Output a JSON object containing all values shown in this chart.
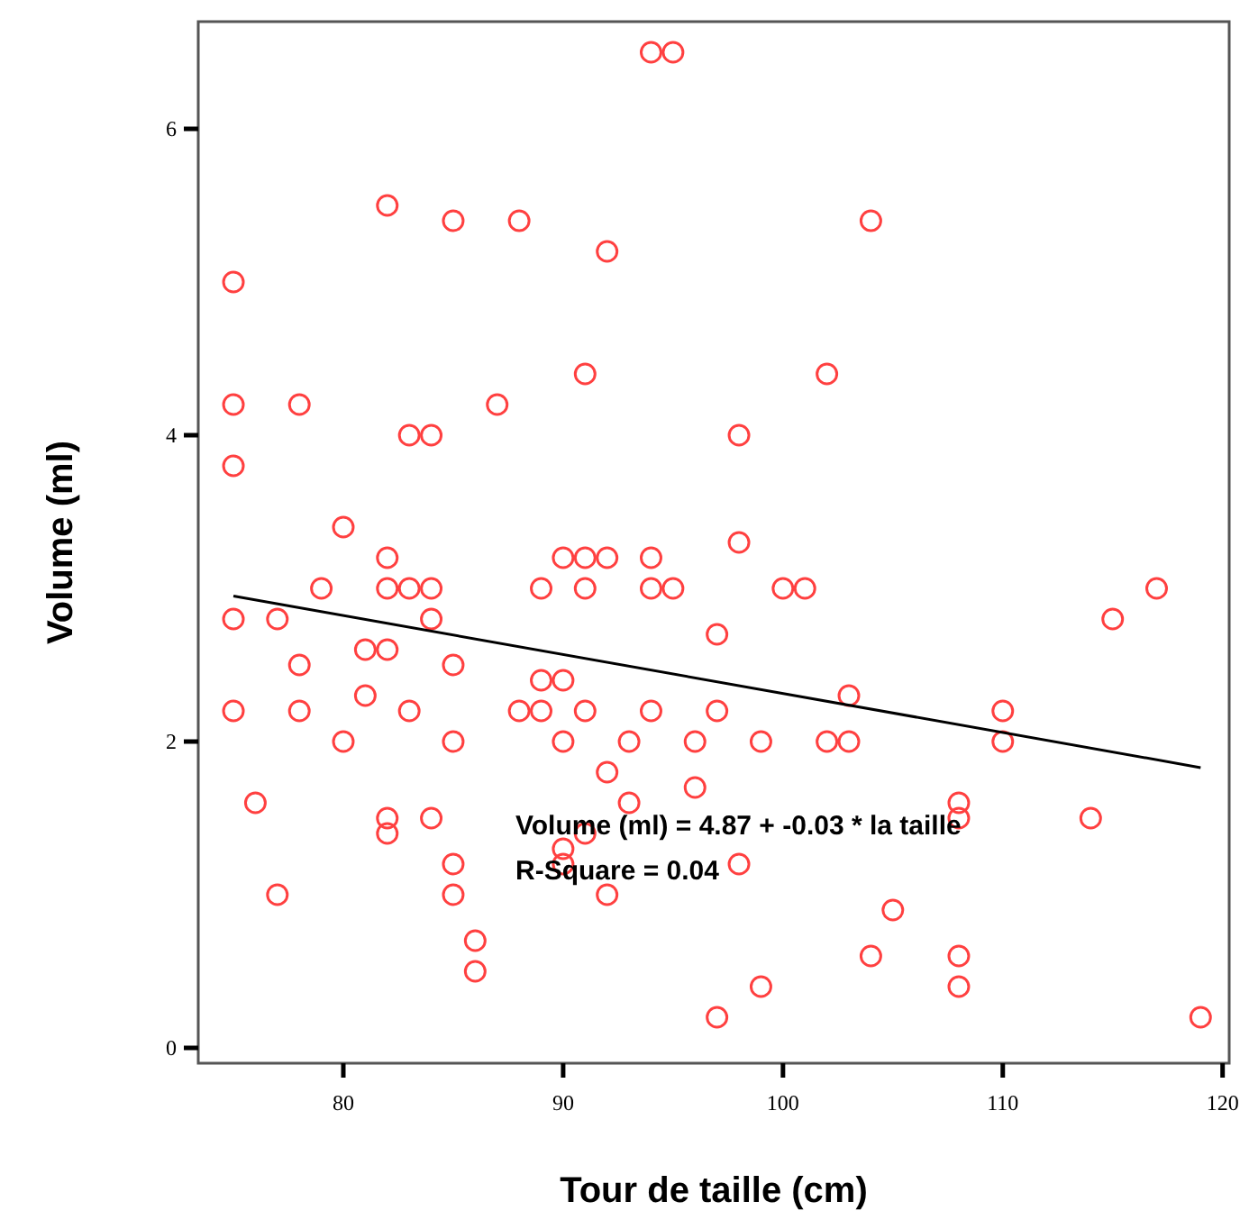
{
  "chart_data": {
    "type": "scatter",
    "xlabel": "Tour de taille (cm)",
    "ylabel": "Volume (ml)",
    "xlim": [
      73.4,
      120.3
    ],
    "ylim": [
      -0.1,
      6.7
    ],
    "xticks": [
      80,
      90,
      100,
      110,
      120
    ],
    "yticks": [
      0,
      2,
      4,
      6
    ],
    "grid": false,
    "marker": "circle",
    "series": [
      {
        "color": "#ff4040",
        "x": [
          75,
          75,
          75,
          75,
          75,
          76,
          77,
          77,
          78,
          78,
          78,
          79,
          80,
          80,
          81,
          81,
          82,
          82,
          82,
          82,
          82,
          82,
          83,
          83,
          83,
          84,
          84,
          84,
          84,
          85,
          85,
          85,
          85,
          85,
          86,
          86,
          87,
          88,
          88,
          89,
          89,
          89,
          90,
          90,
          90,
          90,
          90,
          91,
          91,
          91,
          91,
          91,
          92,
          92,
          92,
          92,
          93,
          93,
          94,
          94,
          94,
          94,
          95,
          95,
          96,
          96,
          97,
          97,
          97,
          98,
          98,
          98,
          99,
          99,
          100,
          101,
          102,
          102,
          103,
          103,
          104,
          104,
          105,
          108,
          108,
          108,
          108,
          110,
          110,
          114,
          115,
          117,
          119
        ],
        "values": [
          5.0,
          4.2,
          3.8,
          2.8,
          2.2,
          1.6,
          2.8,
          1.0,
          4.2,
          2.5,
          2.2,
          3.0,
          3.4,
          2.0,
          2.6,
          2.3,
          5.5,
          3.2,
          3.0,
          2.6,
          1.5,
          1.4,
          4.0,
          3.0,
          2.2,
          4.0,
          3.0,
          2.8,
          1.5,
          5.4,
          2.5,
          2.0,
          1.2,
          1.0,
          0.7,
          0.5,
          4.2,
          5.4,
          2.2,
          3.0,
          2.4,
          2.2,
          3.2,
          2.4,
          2.0,
          1.3,
          1.2,
          4.4,
          3.2,
          3.0,
          2.2,
          1.4,
          5.2,
          3.2,
          1.8,
          1.0,
          2.0,
          1.6,
          6.5,
          3.2,
          3.0,
          2.2,
          6.5,
          3.0,
          2.0,
          1.7,
          2.7,
          2.2,
          0.2,
          4.0,
          3.3,
          1.2,
          2.0,
          0.4,
          3.0,
          3.0,
          4.4,
          2.0,
          2.3,
          2.0,
          5.4,
          0.6,
          0.9,
          1.6,
          1.5,
          0.6,
          0.4,
          2.2,
          2.0,
          1.5,
          2.8,
          3.0,
          0.2
        ]
      },
      {
        "type": "line",
        "color": "#000000",
        "line_style": "solid",
        "marker": "none",
        "x": [
          75,
          119
        ],
        "values": [
          2.95,
          1.83
        ]
      }
    ],
    "annotations": [
      "Volume (ml) = 4.87 + -0.03 * la taille",
      "R-Square = 0.04"
    ]
  }
}
